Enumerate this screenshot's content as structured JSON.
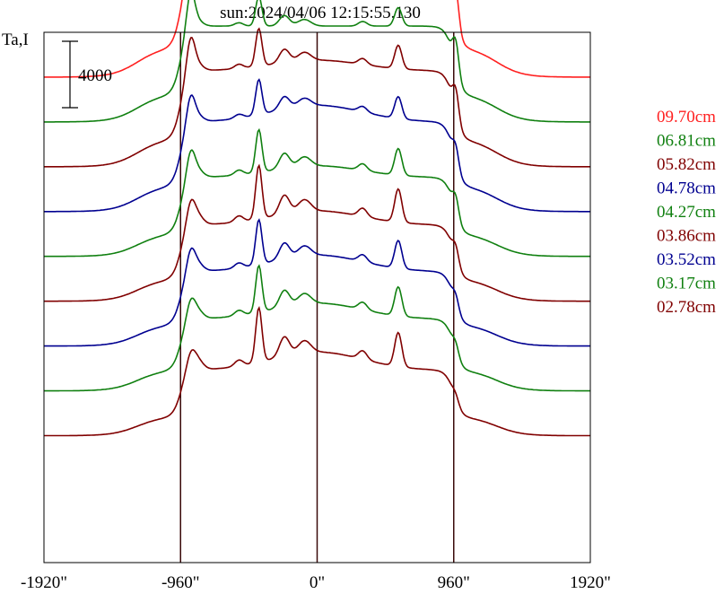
{
  "chart_data": {
    "type": "line",
    "title": "sun:2024/04/06 12:15:55.130",
    "ylabel": "Ta,I",
    "xlabel": "",
    "scale_bar_label": "4000",
    "scale_bar_value": 4000,
    "x_ticks": [
      {
        "value": -1920,
        "label": "-1920\""
      },
      {
        "value": -960,
        "label": "-960\""
      },
      {
        "value": 0,
        "label": "0\""
      },
      {
        "value": 960,
        "label": "960\""
      },
      {
        "value": 1920,
        "label": "1920\""
      }
    ],
    "vertical_lines_at": [
      -960,
      0,
      960
    ],
    "xlim": [
      -1920,
      1920
    ],
    "colors": {
      "red": "#ff2020",
      "green": "#108010",
      "maroon": "#800000",
      "blue": "#000090",
      "axis": "#000000",
      "vline": "#3a0a0a",
      "title": "#000080"
    },
    "series": [
      {
        "name": "09.70cm",
        "color": "#ff2020",
        "baseline": -2700,
        "a": 11500,
        "lw": 2300,
        "rw": 2000,
        "pk": 0.19,
        "core": 0.0
      },
      {
        "name": "06.81cm",
        "color": "#108010",
        "baseline": -5400,
        "a": 10700,
        "lw": 2000,
        "rw": 1800,
        "pk": 0.37,
        "core": 0.0
      },
      {
        "name": "05.82cm",
        "color": "#800000",
        "baseline": -8100,
        "a": 10700,
        "lw": 1800,
        "rw": 1600,
        "pk": 0.47,
        "core": 0.06
      },
      {
        "name": "04.78cm",
        "color": "#000090",
        "baseline": -10800,
        "a": 10000,
        "lw": 1400,
        "rw": 1100,
        "pk": 0.47,
        "core": 0.1
      },
      {
        "name": "04.27cm",
        "color": "#108010",
        "baseline": -13500,
        "a": 8800,
        "lw": 1300,
        "rw": 1100,
        "pk": 0.65,
        "core": 0.08
      },
      {
        "name": "03.86cm",
        "color": "#800000",
        "baseline": -16200,
        "a": 8500,
        "lw": 1000,
        "rw": 900,
        "pk": 0.84,
        "core": 0.1
      },
      {
        "name": "03.52cm",
        "color": "#000090",
        "baseline": -18900,
        "a": 8300,
        "lw": 1000,
        "rw": 700,
        "pk": 0.72,
        "core": 0.12
      },
      {
        "name": "03.17cm",
        "color": "#108010",
        "baseline": -21600,
        "a": 8000,
        "lw": 800,
        "rw": 600,
        "pk": 0.78,
        "core": 0.12
      },
      {
        "name": "02.78cm",
        "color": "#800000",
        "baseline": -24300,
        "a": 7300,
        "lw": 600,
        "rw": 400,
        "pk": 1.0,
        "core": 0.15
      }
    ]
  }
}
